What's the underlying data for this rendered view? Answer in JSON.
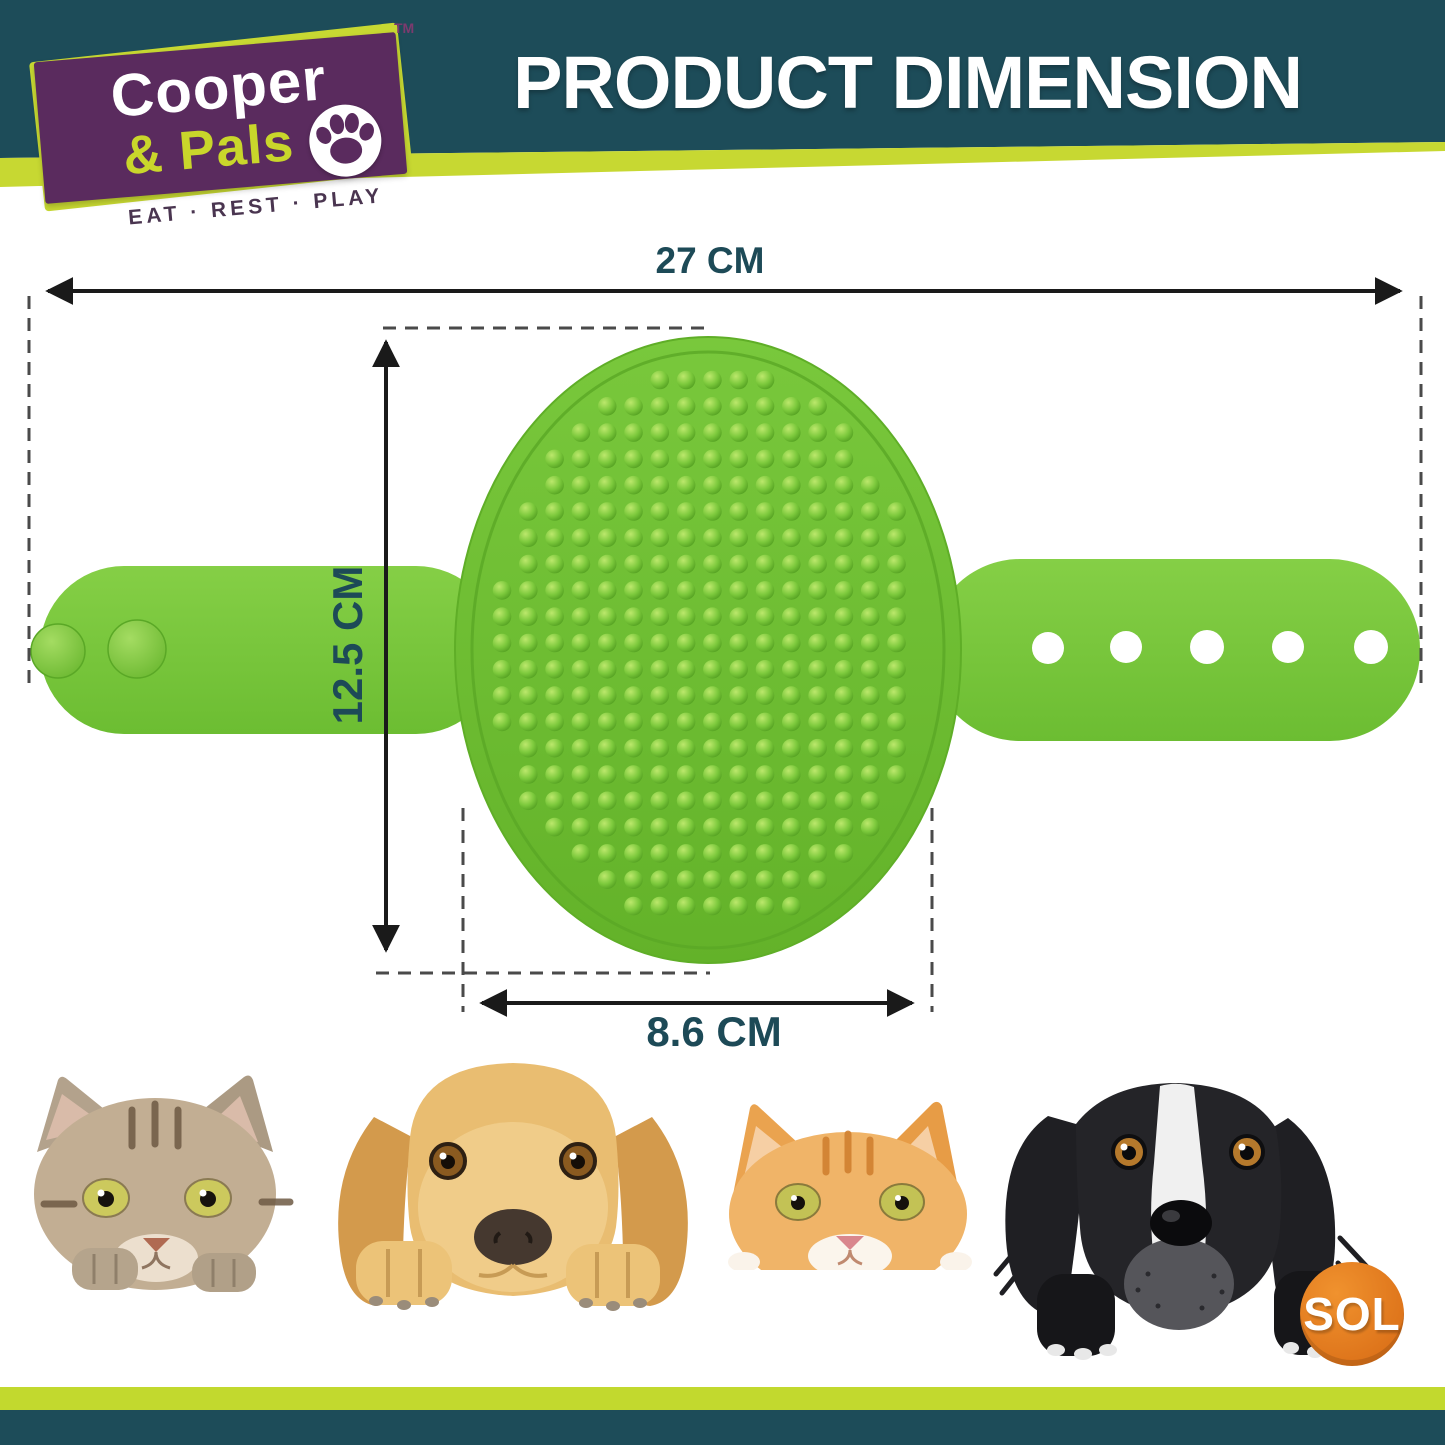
{
  "header": {
    "title": "PRODUCT DIMENSION"
  },
  "brand": {
    "name_line1": "Cooper",
    "name_line2": "& Pals",
    "tagline": "EAT · REST · PLAY",
    "trademark": "TM"
  },
  "dimensions": {
    "overall_width": "27 CM",
    "overall_height": "12.5 CM",
    "pad_width": "8.6 CM"
  },
  "product": {
    "name": "pet grooming brush with adjustable strap"
  },
  "pets": {
    "items": [
      {
        "label": "tabby cat peeking"
      },
      {
        "label": "golden retriever dog peeking"
      },
      {
        "label": "ginger cat peeking"
      },
      {
        "label": "black and white dog peeking"
      }
    ]
  },
  "seller": {
    "logo_text": "SOL"
  },
  "colors": {
    "teal": "#1d4c59",
    "lime": "#c7d832",
    "purple": "#5a2b5e",
    "brand_yellow": "#c9d62b",
    "brush_green": "#6cbe31",
    "dimension_text": "#1d4a57",
    "sol_orange": "#e8821e"
  }
}
